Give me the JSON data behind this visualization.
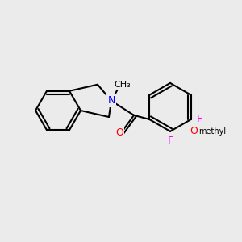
{
  "bg_color": "#ebebeb",
  "bond_color": "#000000",
  "atom_colors": {
    "N": "#0000ff",
    "O": "#ff0000",
    "F": "#ff00ff"
  },
  "bond_width": 1.5,
  "font_size": 9
}
